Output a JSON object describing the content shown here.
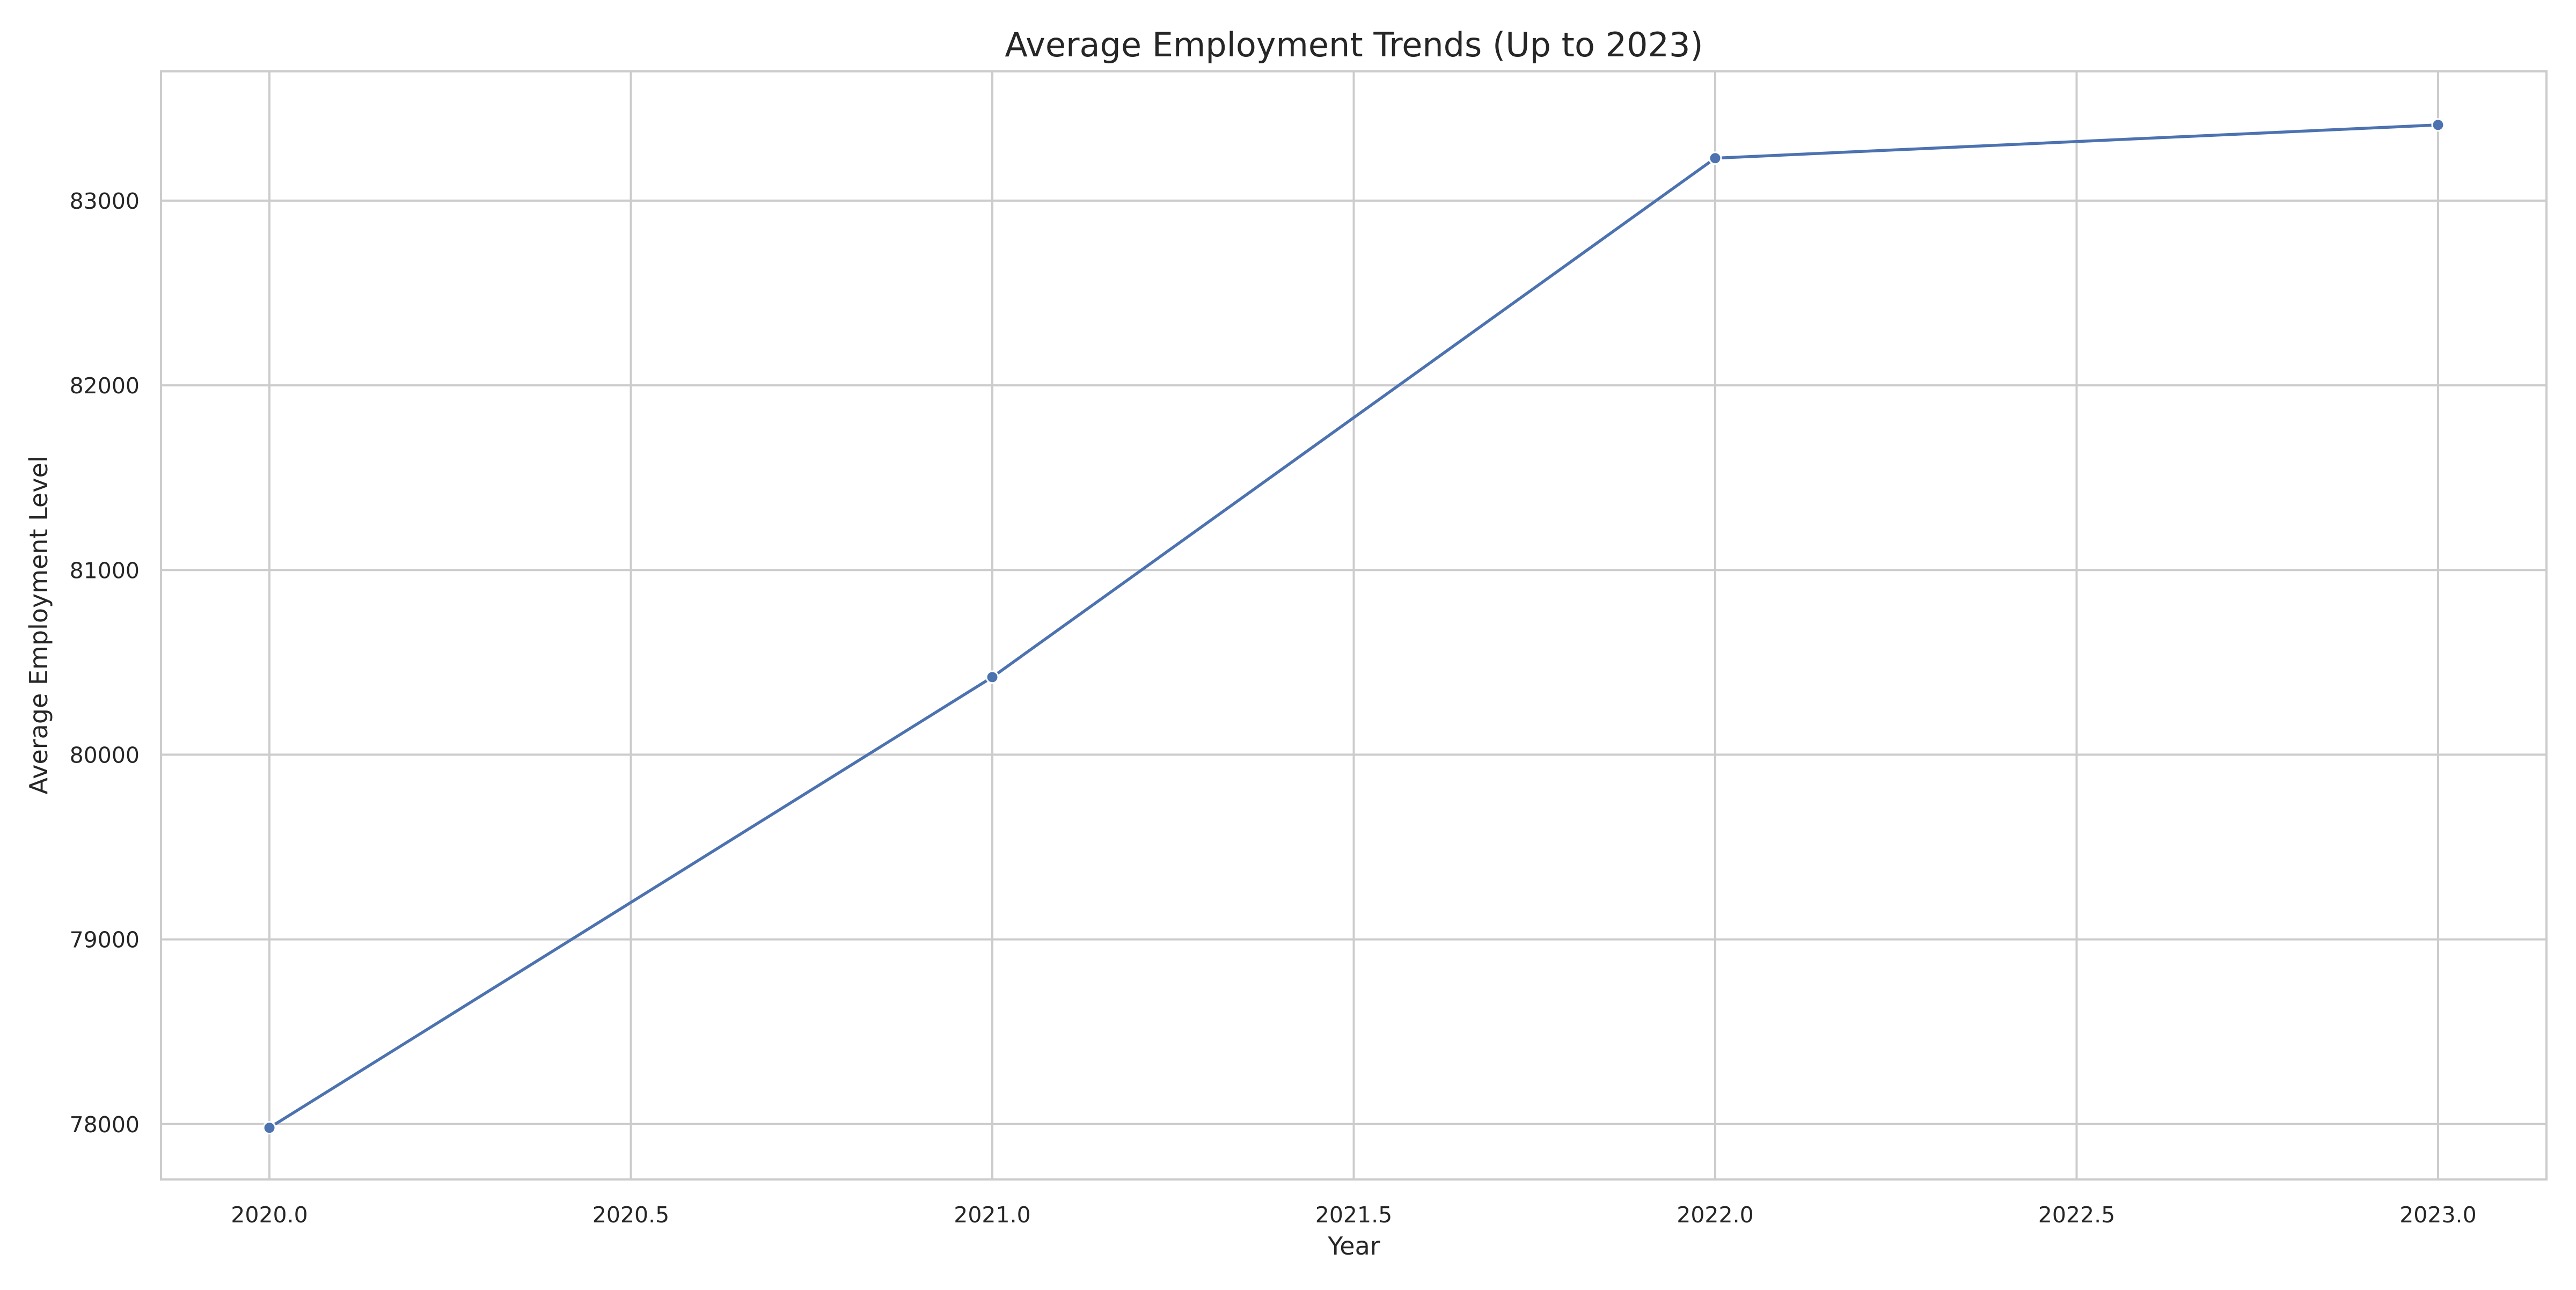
{
  "chart_data": {
    "type": "line",
    "title": "Average Employment Trends (Up to 2023)",
    "xlabel": "Year",
    "ylabel": "Average Employment Level",
    "xlim": [
      2019.85,
      2023.15
    ],
    "ylim": [
      77700,
      83700
    ],
    "x_ticks": [
      2020.0,
      2020.5,
      2021.0,
      2021.5,
      2022.0,
      2022.5,
      2023.0
    ],
    "x_tick_labels": [
      "2020.0",
      "2020.5",
      "2021.0",
      "2021.5",
      "2022.0",
      "2022.5",
      "2023.0"
    ],
    "y_ticks": [
      78000,
      79000,
      80000,
      81000,
      82000,
      83000
    ],
    "y_tick_labels": [
      "78000",
      "79000",
      "80000",
      "81000",
      "82000",
      "83000"
    ],
    "grid": true,
    "series": [
      {
        "color": "#4c72b0",
        "marker": "circle",
        "x": [
          2020,
          2021,
          2022,
          2023
        ],
        "y": [
          77980,
          80420,
          83230,
          83410
        ]
      }
    ]
  }
}
